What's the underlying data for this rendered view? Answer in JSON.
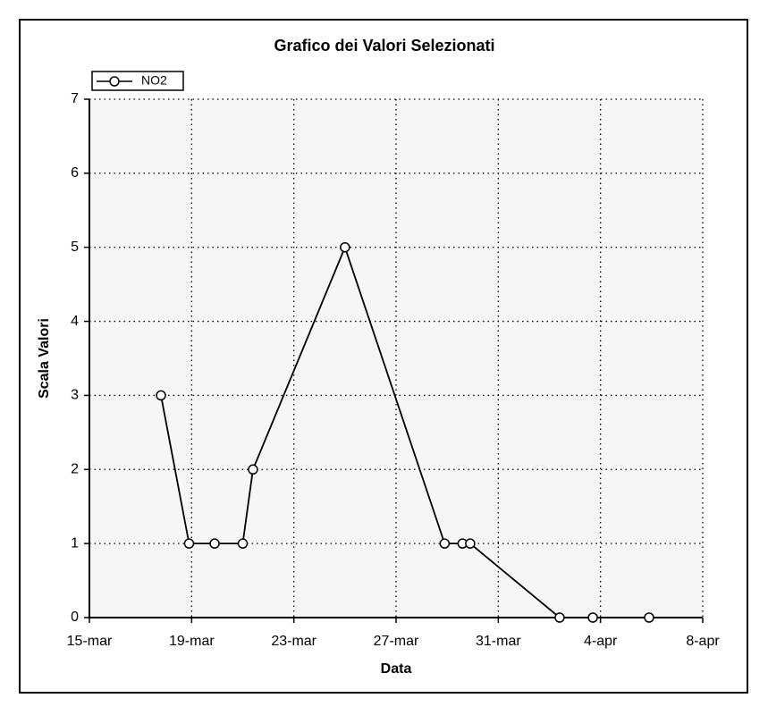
{
  "chart_data": {
    "type": "line",
    "title": "Grafico dei Valori Selezionati",
    "x_label": "Data",
    "y_label": "Scala Valori",
    "x": [
      2.8,
      3.9,
      4.9,
      6.0,
      6.4,
      10.0,
      13.9,
      14.6,
      14.9,
      18.4,
      19.7,
      21.9
    ],
    "series": [
      {
        "name": "NO2",
        "color": "#000000",
        "values": [
          3,
          1,
          1,
          1,
          2,
          5,
          1,
          1,
          1,
          0,
          0,
          0
        ]
      }
    ],
    "xlim": [
      0,
      24
    ],
    "xticks": [
      {
        "value": 0,
        "label": "15-mar"
      },
      {
        "value": 4,
        "label": "19-mar"
      },
      {
        "value": 8,
        "label": "23-mar"
      },
      {
        "value": 12,
        "label": "27-mar"
      },
      {
        "value": 16,
        "label": "31-mar"
      },
      {
        "value": 20,
        "label": "4-apr"
      },
      {
        "value": 24,
        "label": "8-apr"
      }
    ],
    "ylim": [
      0,
      7
    ],
    "yticks": [
      0,
      1,
      2,
      3,
      4,
      5,
      6,
      7
    ],
    "grid": true,
    "legend": "top-left"
  }
}
